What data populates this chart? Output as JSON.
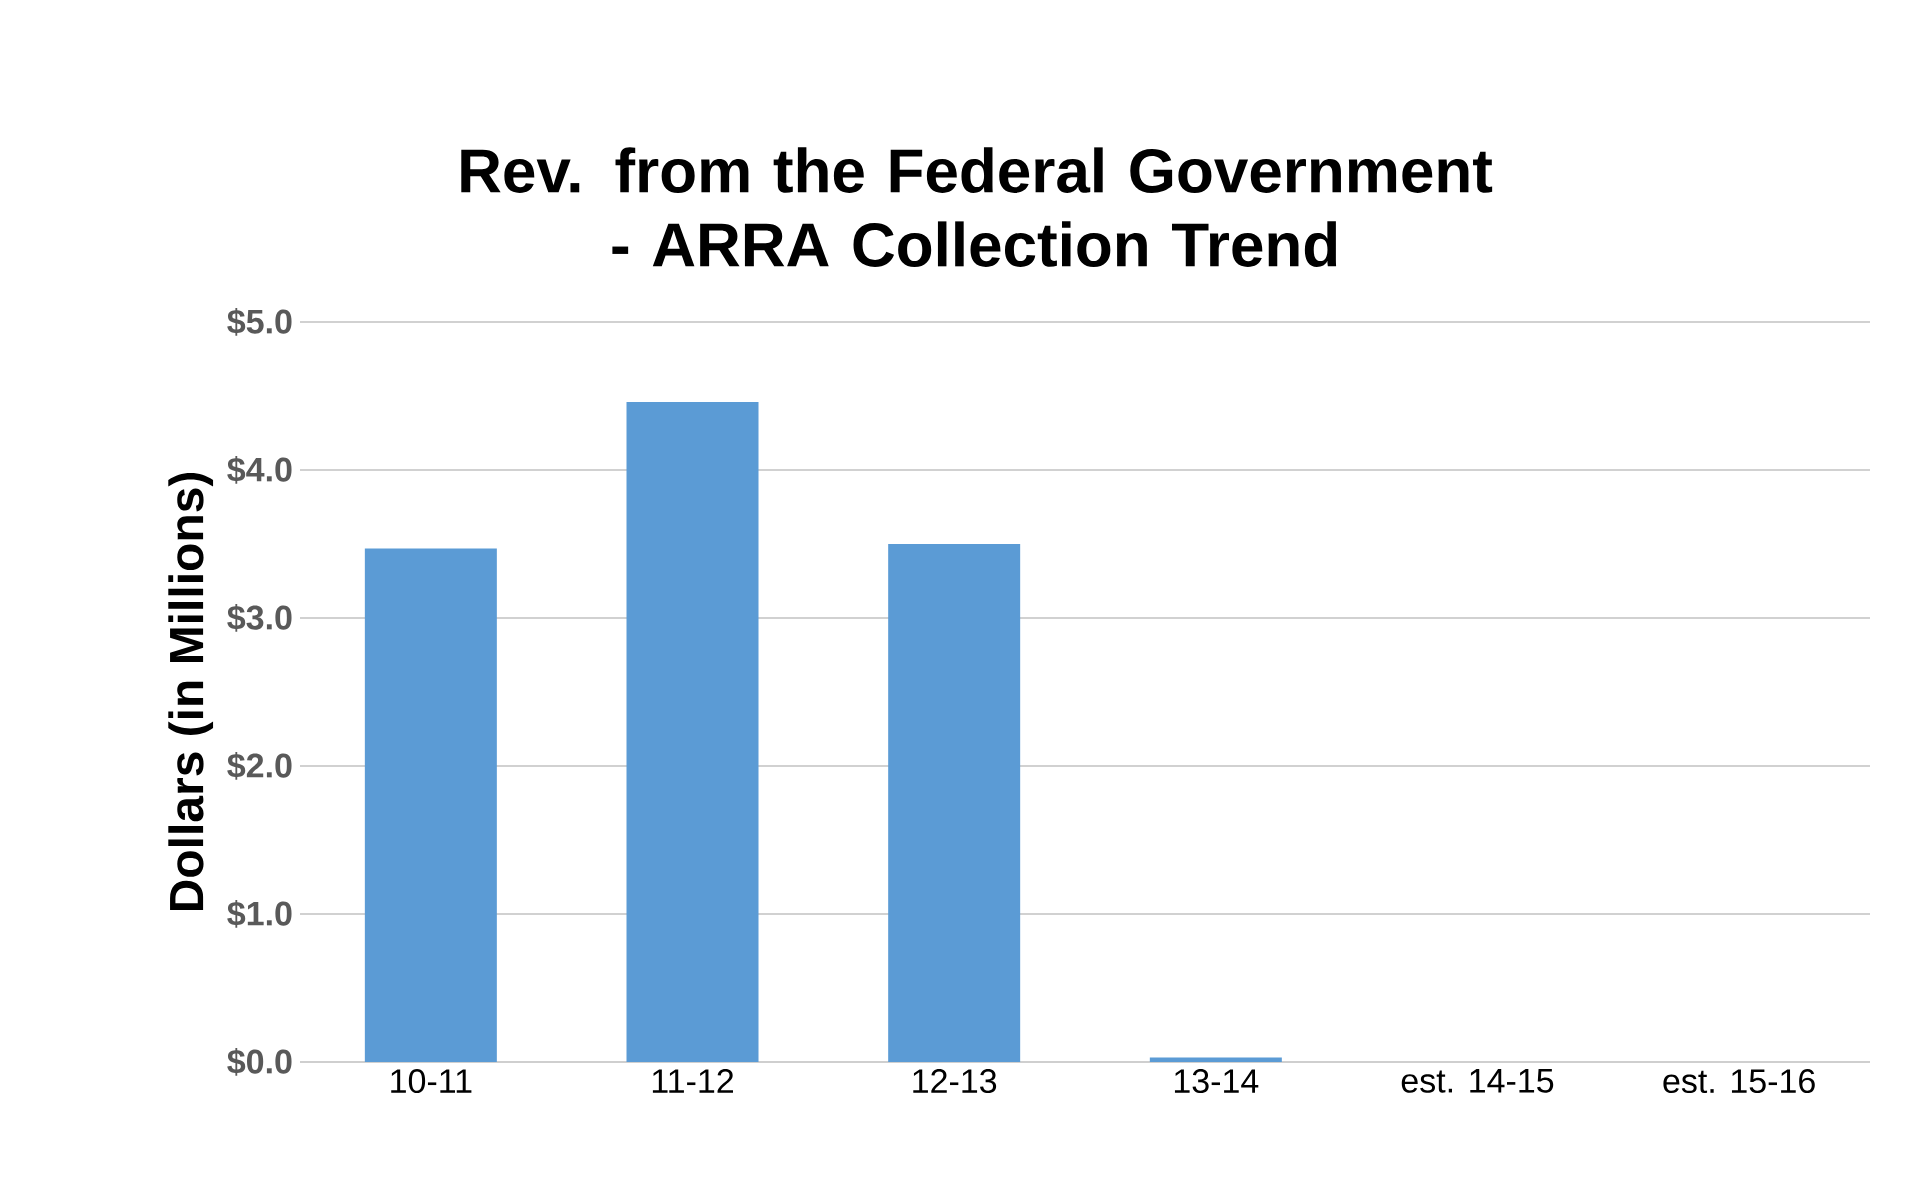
{
  "chart_data": {
    "type": "bar",
    "title": "Rev. from the Federal Government - ARRA Collection Trend",
    "ylabel": "Dollars (in Millions)",
    "categories": [
      "10-11",
      "11-12",
      "12-13",
      "13-14",
      "est. 14-15",
      "est. 15-16"
    ],
    "values": [
      3.47,
      4.46,
      3.5,
      0.03,
      0,
      0
    ],
    "color": "#5b9bd5",
    "ylim": [
      0,
      5
    ],
    "yticks": [
      {
        "value": 0,
        "label": "$0.0"
      },
      {
        "value": 1,
        "label": "$1.0"
      },
      {
        "value": 2,
        "label": "$2.0"
      },
      {
        "value": 3,
        "label": "$3.0"
      },
      {
        "value": 4,
        "label": "$4.0"
      },
      {
        "value": 5,
        "label": "$5.0"
      }
    ],
    "grid": "y"
  }
}
